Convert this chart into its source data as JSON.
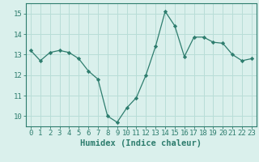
{
  "x": [
    0,
    1,
    2,
    3,
    4,
    5,
    6,
    7,
    8,
    9,
    10,
    11,
    12,
    13,
    14,
    15,
    16,
    17,
    18,
    19,
    20,
    21,
    22,
    23
  ],
  "y": [
    13.2,
    12.7,
    13.1,
    13.2,
    13.1,
    12.8,
    12.2,
    11.8,
    10.0,
    9.7,
    10.4,
    10.9,
    12.0,
    13.4,
    15.1,
    14.4,
    12.9,
    13.85,
    13.85,
    13.6,
    13.55,
    13.0,
    12.7,
    12.8
  ],
  "line_color": "#2e7d6e",
  "marker": "D",
  "marker_size": 2.2,
  "bg_color": "#daf0ec",
  "grid_color": "#b8ddd7",
  "xlabel": "Humidex (Indice chaleur)",
  "ylim": [
    9.5,
    15.5
  ],
  "yticks": [
    10,
    11,
    12,
    13,
    14,
    15
  ],
  "xticks": [
    0,
    1,
    2,
    3,
    4,
    5,
    6,
    7,
    8,
    9,
    10,
    11,
    12,
    13,
    14,
    15,
    16,
    17,
    18,
    19,
    20,
    21,
    22,
    23
  ],
  "tick_fontsize": 6.5,
  "xlabel_fontsize": 7.5
}
